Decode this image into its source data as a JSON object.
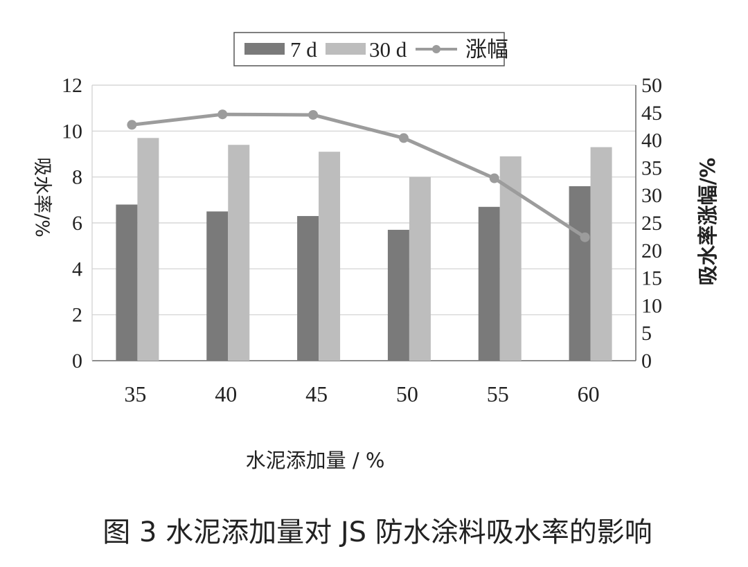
{
  "chart_data": {
    "type": "bar",
    "categories": [
      "35",
      "40",
      "45",
      "50",
      "55",
      "60"
    ],
    "series": [
      {
        "name": "7 d",
        "type": "bar",
        "axis": "left",
        "color": "#7a7a7a",
        "values": [
          6.8,
          6.5,
          6.3,
          5.7,
          6.7,
          7.6
        ]
      },
      {
        "name": "30 d",
        "type": "bar",
        "axis": "left",
        "color": "#bdbdbd",
        "values": [
          9.7,
          9.4,
          9.1,
          8.0,
          8.9,
          9.3
        ]
      },
      {
        "name": "涨幅",
        "type": "line",
        "axis": "right",
        "color": "#9c9c9c",
        "values": [
          42.8,
          44.7,
          44.6,
          40.4,
          33.1,
          22.4
        ]
      }
    ],
    "xlabel": "水泥添加量 / %",
    "ylabel": "吸水率/%",
    "y2label": "吸水率涨幅/%",
    "ylim": [
      0,
      12
    ],
    "yticks": [
      "0",
      "2",
      "4",
      "6",
      "8",
      "10",
      "12"
    ],
    "y2lim": [
      0,
      50
    ],
    "y2ticks": [
      "0",
      "5",
      "10",
      "15",
      "20",
      "25",
      "30",
      "35",
      "40",
      "45",
      "50"
    ],
    "grid": true,
    "legend_position": "top-center"
  },
  "caption": "图 3 水泥添加量对 JS 防水涂料吸水率的影响"
}
